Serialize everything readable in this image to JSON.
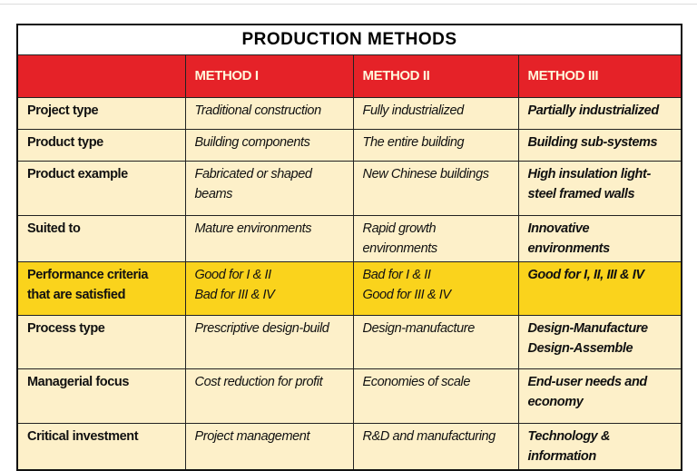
{
  "table": {
    "title": "PRODUCTION METHODS",
    "headers": [
      "METHOD I",
      "METHOD II",
      "METHOD III"
    ],
    "rows": [
      {
        "label": [
          "Project type"
        ],
        "cells": [
          [
            "Traditional construction"
          ],
          [
            "Fully industrialized"
          ],
          [
            "Partially industrialized"
          ]
        ]
      },
      {
        "label": [
          "Product type"
        ],
        "cells": [
          [
            "Building components"
          ],
          [
            "The entire building"
          ],
          [
            "Building sub-systems"
          ]
        ]
      },
      {
        "label": [
          "Product example"
        ],
        "cells": [
          [
            "Fabricated or shaped beams"
          ],
          [
            "New Chinese buildings"
          ],
          [
            "High insulation light-steel framed walls"
          ]
        ]
      },
      {
        "label": [
          "Suited to"
        ],
        "cells": [
          [
            "Mature environments"
          ],
          [
            "Rapid growth environments"
          ],
          [
            "Innovative environments"
          ]
        ]
      },
      {
        "label": [
          "Performance criteria",
          "that are satisfied"
        ],
        "cells": [
          [
            "Good for I & II",
            "Bad for III & IV"
          ],
          [
            "Bad for I & II",
            "Good for III & IV"
          ],
          [
            "Good for I, II, III & IV"
          ]
        ]
      },
      {
        "label": [
          "Process type"
        ],
        "cells": [
          [
            "Prescriptive design-build"
          ],
          [
            "Design-manufacture"
          ],
          [
            "Design-Manufacture",
            "Design-Assemble"
          ]
        ]
      },
      {
        "label": [
          "Managerial focus"
        ],
        "cells": [
          [
            "Cost reduction for profit"
          ],
          [
            "Economies of scale"
          ],
          [
            "End-user needs and economy"
          ]
        ]
      },
      {
        "label": [
          "Critical investment"
        ],
        "cells": [
          [
            "Project management"
          ],
          [
            "R&D and manufacturing"
          ],
          [
            "Technology & information"
          ]
        ]
      }
    ]
  }
}
